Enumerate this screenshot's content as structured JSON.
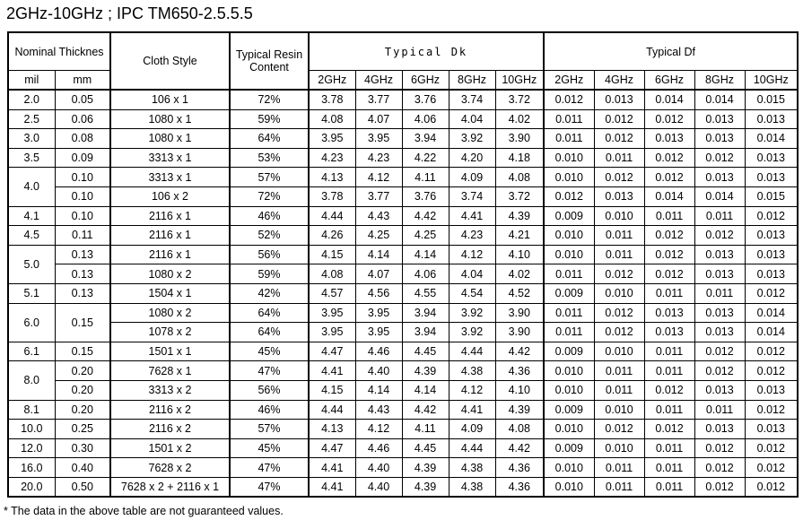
{
  "title": "2GHz-10GHz ; IPC TM650-2.5.5.5",
  "header": {
    "thickness": "Nominal Thicknes",
    "cloth": "Cloth Style",
    "resin": "Typical Resin Content",
    "dk": "Typical Dk",
    "df": "Typical Df",
    "mil": "mil",
    "mm": "mm",
    "dk_freqs": [
      "2GHz",
      "4GHz",
      "6GHz",
      "8GHz",
      "10GHz"
    ],
    "df_freqs": [
      "2GHz",
      "4GHz",
      "6GHz",
      "8GHz",
      "10GHz"
    ]
  },
  "rows": [
    {
      "mil": "2.0",
      "mm": "0.05",
      "style": "106 x 1",
      "resin": "72%",
      "dk": [
        "3.78",
        "3.77",
        "3.76",
        "3.74",
        "3.72"
      ],
      "df": [
        "0.012",
        "0.013",
        "0.014",
        "0.014",
        "0.015"
      ]
    },
    {
      "mil": "2.5",
      "mm": "0.06",
      "style": "1080 x 1",
      "resin": "59%",
      "dk": [
        "4.08",
        "4.07",
        "4.06",
        "4.04",
        "4.02"
      ],
      "df": [
        "0.011",
        "0.012",
        "0.012",
        "0.013",
        "0.013"
      ]
    },
    {
      "mil": "3.0",
      "mm": "0.08",
      "style": "1080 x 1",
      "resin": "64%",
      "dk": [
        "3.95",
        "3.95",
        "3.94",
        "3.92",
        "3.90"
      ],
      "df": [
        "0.011",
        "0.012",
        "0.013",
        "0.013",
        "0.014"
      ]
    },
    {
      "mil": "3.5",
      "mm": "0.09",
      "style": "3313 x 1",
      "resin": "53%",
      "dk": [
        "4.23",
        "4.23",
        "4.22",
        "4.20",
        "4.18"
      ],
      "df": [
        "0.010",
        "0.011",
        "0.012",
        "0.012",
        "0.013"
      ]
    },
    {
      "mil": "4.0",
      "mm": "0.10",
      "style": "3313 x 1",
      "resin": "57%",
      "dk": [
        "4.13",
        "4.12",
        "4.11",
        "4.09",
        "4.08"
      ],
      "df": [
        "0.010",
        "0.012",
        "0.012",
        "0.013",
        "0.013"
      ]
    },
    {
      "mm": "0.10",
      "style": "106 x 2",
      "resin": "72%",
      "dk": [
        "3.78",
        "3.77",
        "3.76",
        "3.74",
        "3.72"
      ],
      "df": [
        "0.012",
        "0.013",
        "0.014",
        "0.014",
        "0.015"
      ]
    },
    {
      "mil": "4.1",
      "mm": "0.10",
      "style": "2116 x 1",
      "resin": "46%",
      "dk": [
        "4.44",
        "4.43",
        "4.42",
        "4.41",
        "4.39"
      ],
      "df": [
        "0.009",
        "0.010",
        "0.011",
        "0.011",
        "0.012"
      ]
    },
    {
      "mil": "4.5",
      "mm": "0.11",
      "style": "2116 x 1",
      "resin": "52%",
      "dk": [
        "4.26",
        "4.25",
        "4.25",
        "4.23",
        "4.21"
      ],
      "df": [
        "0.010",
        "0.011",
        "0.012",
        "0.012",
        "0.013"
      ]
    },
    {
      "mil": "5.0",
      "mm": "0.13",
      "style": "2116 x 1",
      "resin": "56%",
      "dk": [
        "4.15",
        "4.14",
        "4.14",
        "4.12",
        "4.10"
      ],
      "df": [
        "0.010",
        "0.011",
        "0.012",
        "0.013",
        "0.013"
      ]
    },
    {
      "mm": "0.13",
      "style": "1080 x 2",
      "resin": "59%",
      "dk": [
        "4.08",
        "4.07",
        "4.06",
        "4.04",
        "4.02"
      ],
      "df": [
        "0.011",
        "0.012",
        "0.012",
        "0.013",
        "0.013"
      ]
    },
    {
      "mil": "5.1",
      "mm": "0.13",
      "style": "1504 x 1",
      "resin": "42%",
      "dk": [
        "4.57",
        "4.56",
        "4.55",
        "4.54",
        "4.52"
      ],
      "df": [
        "0.009",
        "0.010",
        "0.011",
        "0.011",
        "0.012"
      ]
    },
    {
      "mil": "6.0",
      "mm": "0.15",
      "style": "1080 x 2",
      "resin": "64%",
      "dk": [
        "3.95",
        "3.95",
        "3.94",
        "3.92",
        "3.90"
      ],
      "df": [
        "0.011",
        "0.012",
        "0.013",
        "0.013",
        "0.014"
      ]
    },
    {
      "style": "1078 x 2",
      "resin": "64%",
      "dk": [
        "3.95",
        "3.95",
        "3.94",
        "3.92",
        "3.90"
      ],
      "df": [
        "0.011",
        "0.012",
        "0.013",
        "0.013",
        "0.014"
      ]
    },
    {
      "mil": "6.1",
      "mm": "0.15",
      "style": "1501 x 1",
      "resin": "45%",
      "dk": [
        "4.47",
        "4.46",
        "4.45",
        "4.44",
        "4.42"
      ],
      "df": [
        "0.009",
        "0.010",
        "0.011",
        "0.012",
        "0.012"
      ]
    },
    {
      "mil": "8.0",
      "mm": "0.20",
      "style": "7628 x 1",
      "resin": "47%",
      "dk": [
        "4.41",
        "4.40",
        "4.39",
        "4.38",
        "4.36"
      ],
      "df": [
        "0.010",
        "0.011",
        "0.011",
        "0.012",
        "0.012"
      ]
    },
    {
      "mm": "0.20",
      "style": "3313 x 2",
      "resin": "56%",
      "dk": [
        "4.15",
        "4.14",
        "4.14",
        "4.12",
        "4.10"
      ],
      "df": [
        "0.010",
        "0.011",
        "0.012",
        "0.013",
        "0.013"
      ]
    },
    {
      "mil": "8.1",
      "mm": "0.20",
      "style": "2116 x 2",
      "resin": "46%",
      "dk": [
        "4.44",
        "4.43",
        "4.42",
        "4.41",
        "4.39"
      ],
      "df": [
        "0.009",
        "0.010",
        "0.011",
        "0.011",
        "0.012"
      ]
    },
    {
      "mil": "10.0",
      "mm": "0.25",
      "style": "2116 x 2",
      "resin": "57%",
      "dk": [
        "4.13",
        "4.12",
        "4.11",
        "4.09",
        "4.08"
      ],
      "df": [
        "0.010",
        "0.012",
        "0.012",
        "0.013",
        "0.013"
      ]
    },
    {
      "mil": "12.0",
      "mm": "0.30",
      "style": "1501 x 2",
      "resin": "45%",
      "dk": [
        "4.47",
        "4.46",
        "4.45",
        "4.44",
        "4.42"
      ],
      "df": [
        "0.009",
        "0.010",
        "0.011",
        "0.012",
        "0.012"
      ]
    },
    {
      "mil": "16.0",
      "mm": "0.40",
      "style": "7628 x 2",
      "resin": "47%",
      "dk": [
        "4.41",
        "4.40",
        "4.39",
        "4.38",
        "4.36"
      ],
      "df": [
        "0.010",
        "0.011",
        "0.011",
        "0.012",
        "0.012"
      ]
    },
    {
      "mil": "20.0",
      "mm": "0.50",
      "style": "7628 x 2 + 2116 x 1",
      "resin": "47%",
      "dk": [
        "4.41",
        "4.40",
        "4.39",
        "4.38",
        "4.36"
      ],
      "df": [
        "0.010",
        "0.011",
        "0.011",
        "0.012",
        "0.012"
      ]
    }
  ],
  "footnote": "* The data in the above table are not guaranteed values."
}
